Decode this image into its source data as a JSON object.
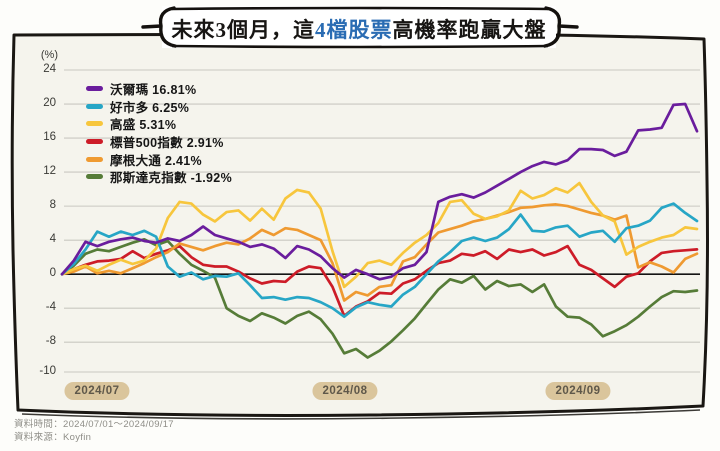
{
  "title": {
    "pre": "未來3個月，這",
    "highlight": "4檔股票",
    "post": "高機率跑贏大盤"
  },
  "footer": {
    "line1": "資料時間：2024/07/01～2024/09/17",
    "line2": "資料來源：Koyfin"
  },
  "colors": {
    "card_bg": "#f5f4ed",
    "frame": "#1a1713",
    "grid": "#c9c8c1",
    "zero_line": "#141414",
    "badge_bg": "#dac59c",
    "badge_text": "#5f584a",
    "title_highlight": "#2a6cb3",
    "footer_text": "#8f8e88"
  },
  "chart_data": {
    "type": "line",
    "title": "未來3個月，這4檔股票高機率跑贏大盤",
    "unit_label": "(%)",
    "legend_position": "top-left",
    "grid": true,
    "y_ticks": [
      24,
      20,
      16,
      12,
      8,
      4,
      0,
      -4,
      -8,
      -10
    ],
    "ylim": [
      -10,
      24
    ],
    "x_labels": [
      "2024/07",
      "2024/08",
      "2024/09"
    ],
    "dates": [
      "07/01",
      "07/02",
      "07/03",
      "07/05",
      "07/08",
      "07/09",
      "07/10",
      "07/11",
      "07/12",
      "07/15",
      "07/16",
      "07/17",
      "07/18",
      "07/19",
      "07/22",
      "07/23",
      "07/24",
      "07/25",
      "07/26",
      "07/29",
      "07/30",
      "07/31",
      "08/01",
      "08/02",
      "08/05",
      "08/06",
      "08/07",
      "08/08",
      "08/09",
      "08/12",
      "08/13",
      "08/14",
      "08/15",
      "08/16",
      "08/19",
      "08/20",
      "08/21",
      "08/22",
      "08/23",
      "08/26",
      "08/27",
      "08/28",
      "08/29",
      "08/30",
      "09/03",
      "09/04",
      "09/05",
      "09/06",
      "09/09",
      "09/10",
      "09/11",
      "09/12",
      "09/13",
      "09/16",
      "09/17"
    ],
    "series": [
      {
        "key": "walmart",
        "name": "沃爾瑪",
        "change_pct": 16.81,
        "legend_label": "沃爾瑪 16.81%",
        "color": "#6a1d9d",
        "values": [
          0,
          1.6,
          3.8,
          3.3,
          3.8,
          4.1,
          4.3,
          3.9,
          3.7,
          4.2,
          3.9,
          4.6,
          5.6,
          4.6,
          4.2,
          3.8,
          3.2,
          3.5,
          3.0,
          1.9,
          3.3,
          2.9,
          2.1,
          0.7,
          -0.4,
          0.5,
          0.0,
          -0.6,
          -0.3,
          0.7,
          1.1,
          2.6,
          8.5,
          9.1,
          9.4,
          9.0,
          9.6,
          10.4,
          11.2,
          12.0,
          12.7,
          13.2,
          12.9,
          13.4,
          14.7,
          14.7,
          14.6,
          13.9,
          14.4,
          16.9,
          17.0,
          17.2,
          19.9,
          20.0,
          16.81
        ]
      },
      {
        "key": "costco",
        "name": "好市多",
        "change_pct": 6.25,
        "legend_label": "好市多 6.25%",
        "color": "#27a6c6",
        "values": [
          0,
          1.2,
          2.9,
          5.0,
          4.4,
          5.0,
          4.6,
          5.1,
          4.4,
          0.9,
          -0.3,
          0.2,
          -0.6,
          -0.2,
          -0.3,
          0.1,
          -1.3,
          -2.8,
          -2.7,
          -3.0,
          -2.7,
          -2.8,
          -3.3,
          -4.0,
          -5.0,
          -3.9,
          -3.3,
          -3.6,
          -3.8,
          -2.4,
          -1.5,
          0.0,
          1.5,
          2.6,
          3.9,
          4.3,
          3.9,
          4.3,
          5.3,
          7.0,
          5.1,
          5.0,
          5.5,
          5.7,
          4.4,
          4.9,
          5.1,
          3.8,
          5.4,
          5.7,
          6.3,
          7.8,
          8.3,
          7.2,
          6.25
        ]
      },
      {
        "key": "goldman-sachs",
        "name": "高盛",
        "change_pct": 5.31,
        "legend_label": "高盛 5.31%",
        "color": "#f7c63d",
        "values": [
          0,
          0.6,
          1.0,
          0.4,
          1.1,
          1.7,
          1.2,
          1.6,
          3.0,
          6.6,
          8.5,
          8.3,
          7.0,
          6.2,
          7.3,
          7.5,
          6.3,
          7.7,
          6.4,
          8.9,
          9.9,
          9.6,
          7.7,
          2.7,
          -1.5,
          -0.3,
          1.3,
          1.6,
          1.1,
          2.5,
          3.7,
          4.6,
          6.0,
          8.5,
          8.7,
          7.1,
          6.5,
          6.8,
          7.5,
          9.8,
          8.9,
          9.3,
          10.1,
          9.6,
          10.7,
          8.5,
          6.9,
          6.2,
          2.3,
          3.2,
          3.8,
          4.3,
          4.6,
          5.5,
          5.31
        ]
      },
      {
        "key": "sp500-index",
        "name": "標普500指數",
        "change_pct": 2.91,
        "legend_label": "標普500指數 2.91%",
        "color": "#cd1c28",
        "values": [
          0,
          0.6,
          1.1,
          1.5,
          1.6,
          1.8,
          2.7,
          1.9,
          2.4,
          2.8,
          3.3,
          2.0,
          1.1,
          0.9,
          0.9,
          0.3,
          -0.5,
          -1.1,
          -0.8,
          -0.9,
          0.3,
          0.9,
          0.7,
          -1.5,
          -4.9,
          -3.8,
          -3.2,
          -2.2,
          -2.3,
          -1.1,
          -0.6,
          0.4,
          1.3,
          1.6,
          2.4,
          2.2,
          2.7,
          1.8,
          2.9,
          2.6,
          2.9,
          2.2,
          2.6,
          3.3,
          1.1,
          0.5,
          -0.5,
          -1.5,
          -0.3,
          0.1,
          1.5,
          2.5,
          2.7,
          2.8,
          2.91
        ]
      },
      {
        "key": "jpmorgan",
        "name": "摩根大通",
        "change_pct": 2.41,
        "legend_label": "摩根大通 2.41%",
        "color": "#ef9a31",
        "values": [
          0,
          0.3,
          0.9,
          0.1,
          0.4,
          0.1,
          0.7,
          1.3,
          2.0,
          2.6,
          3.6,
          3.2,
          2.8,
          3.3,
          3.7,
          3.5,
          4.2,
          5.2,
          4.6,
          5.4,
          5.2,
          4.6,
          4.0,
          1.3,
          -3.1,
          -2.1,
          -2.5,
          -1.5,
          -1.3,
          1.5,
          2.0,
          3.5,
          4.9,
          5.3,
          5.7,
          6.2,
          6.5,
          6.9,
          7.3,
          7.8,
          7.9,
          8.1,
          8.2,
          8.0,
          7.6,
          7.2,
          6.9,
          6.4,
          6.9,
          0.8,
          1.4,
          0.9,
          0.2,
          1.8,
          2.41
        ]
      },
      {
        "key": "nasdaq-index",
        "name": "那斯達克指數",
        "change_pct": -1.92,
        "legend_label": "那斯達克指數 -1.92%",
        "color": "#567c38",
        "values": [
          0,
          1.0,
          2.4,
          2.9,
          2.7,
          3.2,
          3.7,
          4.1,
          3.4,
          3.9,
          2.4,
          1.1,
          0.4,
          -0.4,
          -4.0,
          -4.9,
          -5.5,
          -4.6,
          -5.1,
          -5.8,
          -4.9,
          -4.4,
          -5.3,
          -7.0,
          -9.3,
          -8.8,
          -9.8,
          -9.0,
          -7.9,
          -6.6,
          -5.2,
          -3.5,
          -1.8,
          -0.6,
          -1.0,
          -0.2,
          -1.8,
          -0.8,
          -1.4,
          -1.2,
          -2.1,
          -1.2,
          -3.8,
          -5.0,
          -5.1,
          -5.9,
          -7.3,
          -6.7,
          -6.0,
          -5.0,
          -3.8,
          -2.7,
          -2.0,
          -2.1,
          -1.92
        ]
      }
    ]
  }
}
